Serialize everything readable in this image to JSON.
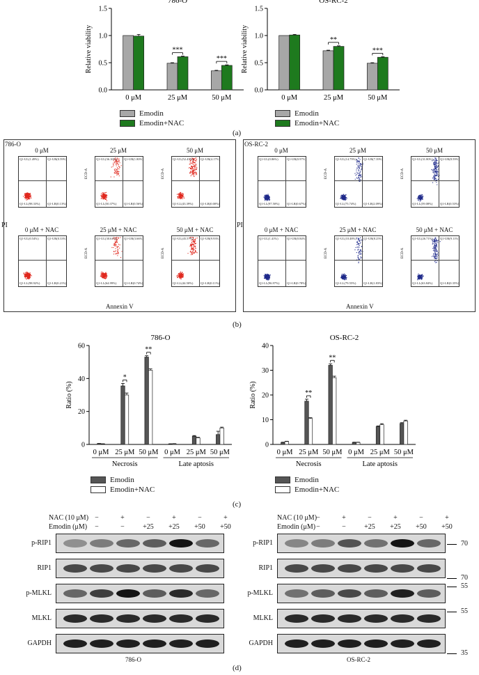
{
  "panels": {
    "a": "(a)",
    "b": "(b)",
    "c": "(c)",
    "d": "(d)"
  },
  "colors": {
    "emodin_a": "#a7a7a7",
    "nac_a": "#1e7a1e",
    "emodin_c": "#555555",
    "nac_c": "#ffffff",
    "dot_786": "#e0281e",
    "dot_os": "#1f2a8a"
  },
  "panel_a": {
    "legend": [
      "Emodin",
      "Emodin+NAC"
    ],
    "ylabel": "Relative viability",
    "charts": [
      {
        "title": "786-O"
      },
      {
        "title": "OS-RC-2"
      }
    ]
  },
  "panel_b": {
    "pi": "PI",
    "annexin": "Annexin V",
    "left": {
      "cell": "786-O",
      "cols_top": [
        "0 μM",
        "25 μM",
        "50 μM"
      ],
      "cols_bottom": [
        "0 μM + NAC",
        "25 μM + NAC",
        "50 μM + NAC"
      ],
      "quadrants": [
        [
          "Q1-UL(1.49%)",
          "Q1-UR(0.59%)",
          "Q1-LL(98.33%)",
          "Q1-LR(0.13%)"
        ],
        [
          "Q1-UL(36.16%)",
          "Q1-UR(1.80%)",
          "Q1-LL(50.37%)",
          "Q1-LR(0.56%)"
        ],
        [
          "Q1-UL(52.43%)",
          "Q1-UR(4.17%)",
          "Q1-LL(43.39%)",
          "Q1-LR(0.00%)"
        ],
        [
          "Q1-UL(0.54%)",
          "Q1-UR(0.33%)",
          "Q1-LL(98.92%)",
          "Q1-LR(0.21%)"
        ],
        [
          "Q1-UL(30.61%)",
          "Q1-UR(3.66%)",
          "Q1-LL(64.99%)",
          "Q1-LR(0.74%)"
        ],
        [
          "Q1-UL(45.57%)",
          "Q1-UR(9.93%)",
          "Q1-LL(44.50%)",
          "Q1-LR(0.11%)"
        ]
      ]
    },
    "right": {
      "cell": "OS-RC-2",
      "cols_top": [
        "0 μM",
        "25 μM",
        "50 μM"
      ],
      "cols_bottom": [
        "0 μM + NAC",
        "25 μM + NAC",
        "50 μM + NAC"
      ],
      "quadrants": [
        [
          "Q1-UL(0.86%)",
          "Q1-UR(0.97%)",
          "Q1-LL(97.50%)",
          "Q1-LR(0.67%)"
        ],
        [
          "Q1-UL(14.79%)",
          "Q1-UR(7.39%)",
          "Q1-LL(75.74%)",
          "Q1-LR(2.09%)"
        ],
        [
          "Q1-UL(31.80%)",
          "Q1-UR(8.59%)",
          "Q1-LL(59.08%)",
          "Q1-LR(0.53%)"
        ],
        [
          "Q1-UL(1.41%)",
          "Q1-UR(0.84%)",
          "Q1-LL(96.97%)",
          "Q1-LR(0.78%)"
        ],
        [
          "Q1-UL(10.48%)",
          "Q1-UR(8.25%)",
          "Q1-LL(79.55%)",
          "Q1-LR(1.83%)"
        ],
        [
          "Q1-UL(26.71%)",
          "Q1-UR(9.11%)",
          "Q1-LL(63.84%)",
          "Q1-LR(0.35%)"
        ]
      ]
    },
    "ylabel_small": "ECD-A"
  },
  "panel_c": {
    "legend": [
      "Emodin",
      "Emodin+NAC"
    ],
    "ylabel": "Ratio (%)",
    "groups": [
      "Necrosis",
      "Late aptosis"
    ],
    "charts": [
      {
        "title": "786-O"
      },
      {
        "title": "OS-RC-2"
      }
    ]
  },
  "panel_d": {
    "rows_head": [
      "NAC (10 μM)",
      "Emodin (μM)"
    ],
    "nac_signs": [
      "−",
      "+",
      "−",
      "+",
      "−",
      "+"
    ],
    "emodin_vals": [
      "−",
      "−",
      "+25",
      "+25",
      "+50",
      "+50"
    ],
    "proteins": [
      "p-RIP1",
      "RIP1",
      "p-MLKL",
      "MLKL",
      "GAPDH"
    ],
    "mw": [
      "70",
      "70",
      "55",
      "55",
      "35"
    ],
    "cells": [
      "786-O",
      "OS-RC-2"
    ]
  },
  "chart_data": [
    {
      "type": "bar",
      "title": "786-O",
      "ylabel": "Relative viability",
      "categories": [
        "0 μM",
        "25 μM",
        "50 μM"
      ],
      "ylim": [
        0,
        1.5
      ],
      "yticks": [
        0.0,
        0.5,
        1.0,
        1.5
      ],
      "series": [
        {
          "name": "Emodin",
          "values": [
            1.0,
            0.49,
            0.35
          ]
        },
        {
          "name": "Emodin+NAC",
          "values": [
            0.99,
            0.61,
            0.45
          ]
        }
      ],
      "errors": [
        [
          0,
          0.01,
          0.01
        ],
        [
          0.03,
          0.01,
          0.01
        ]
      ],
      "significance": [
        "",
        "***",
        "***"
      ]
    },
    {
      "type": "bar",
      "title": "OS-RC-2",
      "ylabel": "Relative viability",
      "categories": [
        "0 μM",
        "25 μM",
        "50 μM"
      ],
      "ylim": [
        0,
        1.5
      ],
      "yticks": [
        0.0,
        0.5,
        1.0,
        1.5
      ],
      "series": [
        {
          "name": "Emodin",
          "values": [
            1.0,
            0.72,
            0.49
          ]
        },
        {
          "name": "Emodin+NAC",
          "values": [
            1.01,
            0.8,
            0.6
          ]
        }
      ],
      "errors": [
        [
          0,
          0.01,
          0.01
        ],
        [
          0.01,
          0.01,
          0.01
        ]
      ],
      "significance": [
        "",
        "**",
        "***"
      ]
    },
    {
      "type": "bar",
      "title": "786-O",
      "ylabel": "Ratio (%)",
      "categories": [
        "0 μM",
        "25 μM",
        "50 μM",
        "0 μM",
        "25 μM",
        "50 μM"
      ],
      "groups": [
        "Necrosis",
        "Late aptosis"
      ],
      "ylim": [
        0,
        60
      ],
      "yticks": [
        0,
        20,
        40,
        60
      ],
      "series": [
        {
          "name": "Emodin",
          "values": [
            0.5,
            35.5,
            53.0,
            0.3,
            5.0,
            6.0
          ]
        },
        {
          "name": "Emodin+NAC",
          "values": [
            0.3,
            30.0,
            45.0,
            0.4,
            4.0,
            10.0
          ]
        }
      ],
      "errors": [
        [
          0.1,
          1.5,
          0.8,
          0.1,
          0.4,
          2.0
        ],
        [
          0.1,
          1.2,
          0.8,
          0.1,
          0.3,
          0.5
        ]
      ],
      "significance": [
        "",
        "*",
        "**",
        "",
        "",
        ""
      ]
    },
    {
      "type": "bar",
      "title": "OS-RC-2",
      "ylabel": "Ratio (%)",
      "categories": [
        "0 μM",
        "25 μM",
        "50 μM",
        "0 μM",
        "25 μM",
        "50 μM"
      ],
      "groups": [
        "Necrosis",
        "Late aptosis"
      ],
      "ylim": [
        0,
        40
      ],
      "yticks": [
        0,
        10,
        20,
        30,
        40
      ],
      "series": [
        {
          "name": "Emodin",
          "values": [
            0.8,
            17.5,
            32.0,
            0.8,
            7.2,
            8.5
          ]
        },
        {
          "name": "Emodin+NAC",
          "values": [
            1.2,
            10.5,
            27.0,
            0.8,
            8.0,
            9.5
          ]
        }
      ],
      "errors": [
        [
          0.1,
          0.8,
          0.6,
          0.1,
          0.3,
          0.3
        ],
        [
          0.1,
          0.3,
          0.6,
          0.1,
          0.4,
          0.3
        ]
      ],
      "significance": [
        "",
        "**",
        "**",
        "",
        "",
        ""
      ]
    }
  ]
}
